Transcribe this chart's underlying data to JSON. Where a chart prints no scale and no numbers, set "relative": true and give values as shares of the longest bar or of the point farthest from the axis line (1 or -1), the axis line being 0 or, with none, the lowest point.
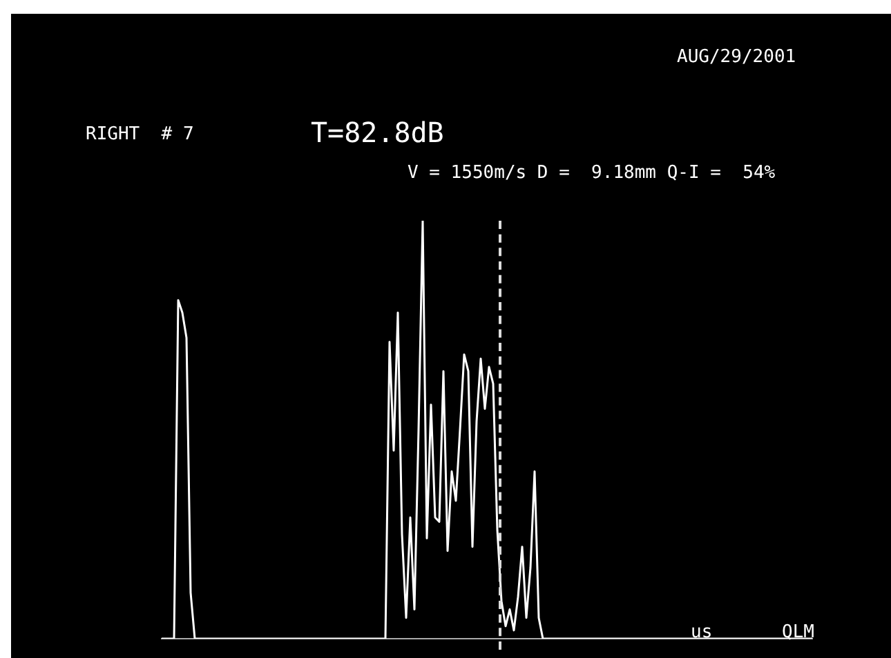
{
  "chart_data": {
    "type": "line",
    "relative": true,
    "title": "RIGHT  # 7",
    "xlabel": "us",
    "annotations": [
      "AUG/29/2001",
      "T=82.8dB",
      "V = 1550m/s D =  9.18mm Q-I =  54%",
      "QLM"
    ],
    "categories": [
      null,
      null,
      null,
      null,
      null,
      null,
      null,
      null,
      null,
      null,
      null,
      null,
      null,
      null,
      null,
      null,
      null,
      null,
      null,
      null,
      null,
      null,
      null,
      null,
      null,
      null,
      null,
      null,
      null,
      null,
      null,
      null,
      null,
      null,
      null,
      null,
      null,
      null,
      null,
      null,
      null,
      null,
      null,
      null,
      null,
      null,
      null,
      null,
      null,
      null,
      null,
      null,
      null,
      null,
      null,
      null,
      null,
      null,
      null,
      null,
      null,
      null,
      null,
      null,
      null,
      null,
      null,
      null,
      null,
      null,
      null,
      null,
      null,
      null,
      null,
      null,
      null,
      null,
      null,
      null,
      null,
      null,
      null,
      null,
      null,
      null,
      null,
      null,
      null,
      null,
      null,
      null,
      null,
      null,
      null,
      null,
      null,
      null,
      null,
      null,
      null,
      null,
      null,
      null,
      null,
      null,
      null,
      null,
      null,
      null,
      null,
      null,
      null,
      null,
      null,
      null,
      null,
      null,
      null,
      null,
      null,
      null,
      null,
      null,
      null,
      null,
      null,
      null,
      null,
      null,
      null,
      null,
      null,
      null,
      null,
      null,
      null,
      null,
      null,
      null,
      null,
      null,
      null,
      null,
      null,
      null,
      null,
      null,
      null,
      null,
      null,
      null,
      null,
      null,
      null,
      null,
      null,
      null
    ],
    "series": [
      {
        "color": "#ffffff",
        "values": [
          0,
          0,
          0,
          0,
          0.81,
          0.78,
          0.72,
          0.11,
          0,
          0,
          0,
          0,
          0,
          0,
          0,
          0,
          0,
          0,
          0,
          0,
          0,
          0,
          0,
          0,
          0,
          0,
          0,
          0,
          0,
          0,
          0,
          0,
          0,
          0,
          0,
          0,
          0,
          0,
          0,
          0,
          0,
          0,
          0,
          0,
          0,
          0,
          0,
          0,
          0,
          0,
          0,
          0,
          0,
          0,
          0,
          0.71,
          0.45,
          0.78,
          0.25,
          0.05,
          0.29,
          0.07,
          0.5,
          1,
          0.24,
          0.56,
          0.29,
          0.28,
          0.64,
          0.21,
          0.4,
          0.33,
          0.5,
          0.68,
          0.64,
          0.22,
          0.52,
          0.67,
          0.55,
          0.65,
          0.61,
          0.26,
          0.09,
          0.03,
          0.07,
          0.02,
          0.1,
          0.22,
          0.05,
          0.17,
          0.4,
          0.05,
          0,
          0,
          0,
          0,
          0,
          0,
          0,
          0,
          0,
          0,
          0,
          0,
          0,
          0,
          0,
          0,
          0,
          0,
          0,
          0,
          0,
          0,
          0,
          0,
          0,
          0,
          0,
          0,
          0,
          0,
          0,
          0,
          0,
          0,
          0,
          0,
          0,
          0,
          0,
          0,
          0,
          0,
          0,
          0,
          0,
          0,
          0,
          0,
          0,
          0,
          0,
          0,
          0,
          0,
          0,
          0,
          0,
          0,
          0,
          0,
          0,
          0,
          0,
          0,
          0,
          0
        ]
      }
    ]
  }
}
